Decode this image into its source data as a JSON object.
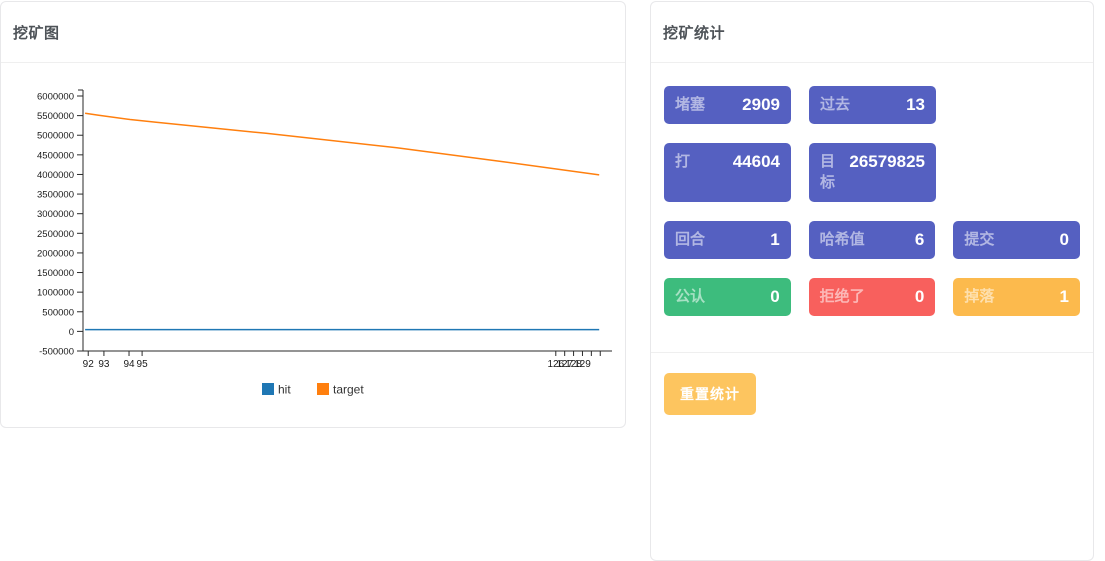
{
  "left_panel": {
    "title": "挖矿图"
  },
  "right_panel": {
    "title": "挖矿统计",
    "reset_button": "重置统计"
  },
  "stats": {
    "rows": [
      {
        "items": [
          {
            "label": "堵塞",
            "value": "2909",
            "color": "purple"
          },
          {
            "label": "过去",
            "value": "13",
            "color": "purple"
          }
        ]
      },
      {
        "items": [
          {
            "label": "打",
            "value": "44604",
            "color": "purple"
          },
          {
            "label": "目标",
            "value": "26579825",
            "color": "purple"
          }
        ]
      },
      {
        "items": [
          {
            "label": "回合",
            "value": "1",
            "color": "purple"
          },
          {
            "label": "哈希值",
            "value": "6",
            "color": "purple"
          },
          {
            "label": "提交",
            "value": "0",
            "color": "purple"
          }
        ]
      },
      {
        "items": [
          {
            "label": "公认",
            "value": "0",
            "color": "green"
          },
          {
            "label": "拒绝了",
            "value": "0",
            "color": "red"
          },
          {
            "label": "掉落",
            "value": "1",
            "color": "yellow"
          }
        ]
      }
    ]
  },
  "colors": {
    "purple": "#5560c1",
    "green": "#3dbc7d",
    "red": "#f8605d",
    "yellow": "#fcba4d",
    "button_yellow": "#fdc55f",
    "hit_blue": "#1f77b4",
    "target_orange": "#ff7f0e",
    "axis": "#2a2a2a"
  },
  "chart_data": {
    "type": "line",
    "title": "",
    "xlabel": "",
    "ylabel": "",
    "ylim": [
      -500000,
      6000000
    ],
    "grid": false,
    "legend_position": "bottom",
    "y_ticks": [
      6000000,
      5500000,
      5000000,
      4500000,
      4000000,
      3500000,
      3000000,
      2500000,
      2000000,
      1500000,
      1000000,
      500000,
      0,
      -500000
    ],
    "x_ticks": [
      {
        "label": "92",
        "pos": 0.01
      },
      {
        "label": "93",
        "pos": 0.04
      },
      {
        "label": "94",
        "pos": 0.088
      },
      {
        "label": "95",
        "pos": 0.113
      },
      {
        "label": "126",
        "pos": 0.904
      },
      {
        "label": "127",
        "pos": 0.921
      },
      {
        "label": "128",
        "pos": 0.938
      },
      {
        "label": "129",
        "pos": 0.955
      },
      {
        "label": "",
        "pos": 0.972
      },
      {
        "label": "",
        "pos": 0.989
      }
    ],
    "series": [
      {
        "name": "hit",
        "color": "#1f77b4",
        "points": [
          {
            "pos": 0.004,
            "value": 44604
          },
          {
            "pos": 0.987,
            "value": 44604
          }
        ]
      },
      {
        "name": "target",
        "color": "#ff7f0e",
        "points": [
          {
            "pos": 0.004,
            "value": 5560000
          },
          {
            "pos": 0.03,
            "value": 5510000
          },
          {
            "pos": 0.09,
            "value": 5400000
          },
          {
            "pos": 0.14,
            "value": 5330000
          },
          {
            "pos": 0.35,
            "value": 5050000
          },
          {
            "pos": 0.6,
            "value": 4680000
          },
          {
            "pos": 0.8,
            "value": 4330000
          },
          {
            "pos": 0.987,
            "value": 3990000
          }
        ]
      }
    ]
  }
}
